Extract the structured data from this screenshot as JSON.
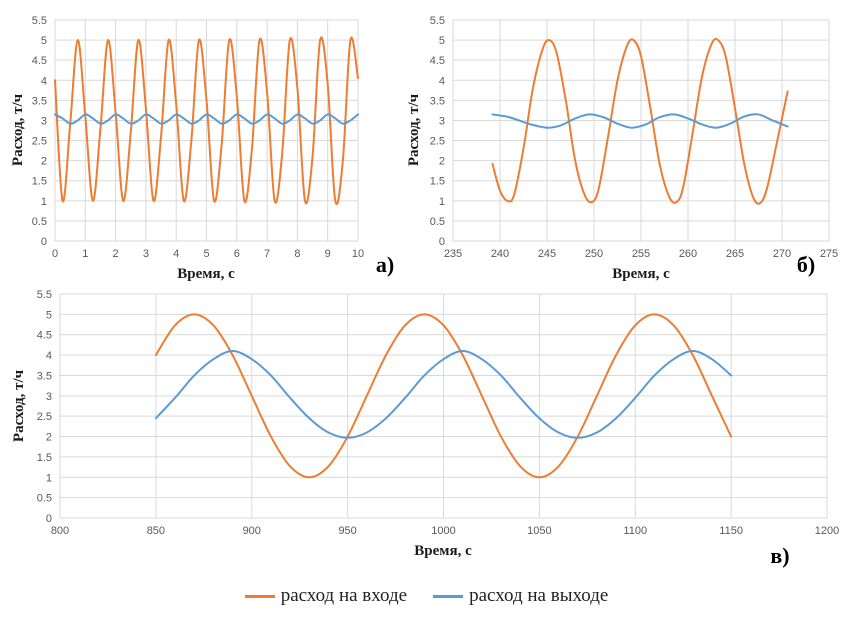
{
  "legend": {
    "items": [
      {
        "label": "расход на входе",
        "color": "#ED7D31"
      },
      {
        "label": "расход на выходе",
        "color": "#5B9BD5"
      }
    ]
  },
  "chart_data": [
    {
      "type": "line",
      "panel_label": "а)",
      "xlabel": "Время, с",
      "ylabel": "Расход, т/ч",
      "xlim": [
        0,
        10
      ],
      "ylim": [
        0,
        5.5
      ],
      "x_ticks": [
        "0",
        "1",
        "2",
        "3",
        "4",
        "5",
        "6",
        "7",
        "8",
        "9",
        "10"
      ],
      "y_ticks": [
        "0",
        "0.5",
        "1",
        "1.5",
        "2",
        "2.5",
        "3",
        "3.5",
        "4",
        "4.5",
        "5",
        "5.5"
      ],
      "series": [
        {
          "name": "расход на входе",
          "color": "#ED7D31",
          "x": [
            0,
            0.25,
            0.5,
            0.75,
            1.0,
            1.25,
            1.5,
            1.75,
            2.0,
            2.25,
            2.5,
            2.75,
            3.0,
            3.25,
            3.5,
            3.75,
            4.0,
            4.25,
            4.5,
            4.75,
            5.0,
            5.25,
            5.5,
            5.75,
            6.0,
            6.25,
            6.5,
            6.75,
            7.0,
            7.25,
            7.5,
            7.75,
            8.0,
            8.25,
            8.5,
            8.75,
            9.0,
            9.25,
            9.5,
            9.75,
            10.0
          ],
          "y": [
            4.0,
            1.0,
            2.9,
            5.0,
            3.1,
            1.0,
            2.8,
            5.0,
            3.2,
            1.0,
            2.7,
            5.0,
            3.3,
            1.0,
            2.6,
            5.0,
            3.4,
            1.0,
            2.5,
            5.0,
            3.5,
            1.0,
            2.4,
            5.0,
            3.6,
            1.0,
            2.3,
            5.0,
            3.7,
            1.0,
            2.2,
            5.0,
            3.8,
            1.0,
            2.1,
            5.0,
            3.9,
            1.0,
            2.0,
            5.0,
            4.05
          ]
        },
        {
          "name": "расход на выходе",
          "color": "#5B9BD5",
          "x": [
            0,
            0.25,
            0.5,
            0.75,
            1.0,
            1.25,
            1.5,
            1.75,
            2.0,
            2.25,
            2.5,
            2.75,
            3.0,
            3.25,
            3.5,
            3.75,
            4.0,
            4.25,
            4.5,
            4.75,
            5.0,
            5.25,
            5.5,
            5.75,
            6.0,
            6.25,
            6.5,
            6.75,
            7.0,
            7.25,
            7.5,
            7.75,
            8.0,
            8.25,
            8.5,
            8.75,
            9.0,
            9.25,
            9.5,
            9.75,
            10.0
          ],
          "y": [
            3.15,
            3.05,
            2.92,
            3.0,
            3.15,
            3.05,
            2.92,
            3.0,
            3.15,
            3.05,
            2.92,
            3.0,
            3.15,
            3.05,
            2.92,
            3.0,
            3.15,
            3.05,
            2.92,
            3.0,
            3.15,
            3.05,
            2.92,
            3.0,
            3.15,
            3.05,
            2.92,
            3.0,
            3.15,
            3.05,
            2.92,
            3.0,
            3.15,
            3.05,
            2.92,
            3.0,
            3.15,
            3.05,
            2.92,
            3.0,
            3.15
          ]
        }
      ]
    },
    {
      "type": "line",
      "panel_label": "б)",
      "xlabel": "Время, с",
      "ylabel": "Расход, т/ч",
      "xlim": [
        235,
        275
      ],
      "ylim": [
        0,
        5.5
      ],
      "x_ticks": [
        "235",
        "240",
        "245",
        "250",
        "255",
        "260",
        "265",
        "270",
        "275"
      ],
      "y_ticks": [
        "0",
        "0.5",
        "1",
        "1.5",
        "2",
        "2.5",
        "3",
        "3.5",
        "4",
        "4.5",
        "5",
        "5.5"
      ],
      "series": [
        {
          "name": "расход на входе",
          "color": "#ED7D31",
          "x": [
            239.2,
            240,
            240.8,
            241.5,
            242.5,
            243.5,
            244.5,
            245.2,
            246,
            247,
            248,
            249,
            249.8,
            250.5,
            251.5,
            252.5,
            253.5,
            254.2,
            255,
            256,
            257,
            258,
            258.8,
            259.5,
            260.5,
            261.5,
            262.5,
            263.2,
            264,
            265,
            266,
            267,
            267.8,
            268.5,
            269.5,
            270.6
          ],
          "y": [
            1.92,
            1.25,
            1.0,
            1.15,
            2.3,
            3.8,
            4.75,
            5.0,
            4.7,
            3.5,
            2.0,
            1.15,
            0.97,
            1.3,
            2.6,
            4.0,
            4.85,
            5.0,
            4.6,
            3.3,
            1.9,
            1.1,
            0.97,
            1.35,
            2.7,
            4.1,
            4.9,
            5.0,
            4.6,
            3.3,
            1.9,
            1.05,
            0.97,
            1.4,
            2.5,
            3.72
          ]
        },
        {
          "name": "расход на выходе",
          "color": "#5B9BD5",
          "x": [
            239.2,
            241,
            243,
            245,
            246.5,
            248,
            249.5,
            251,
            252.5,
            254,
            255.5,
            257,
            258.5,
            260,
            261.5,
            263,
            264.5,
            266,
            267.5,
            269,
            270.6
          ],
          "y": [
            3.15,
            3.08,
            2.92,
            2.82,
            2.88,
            3.05,
            3.15,
            3.08,
            2.92,
            2.82,
            2.9,
            3.08,
            3.15,
            3.05,
            2.9,
            2.82,
            2.92,
            3.1,
            3.15,
            3.0,
            2.85
          ]
        }
      ]
    },
    {
      "type": "line",
      "panel_label": "в)",
      "xlabel": "Время, с",
      "ylabel": "Расход, т/ч",
      "xlim": [
        800,
        1200
      ],
      "ylim": [
        0,
        5.5
      ],
      "x_ticks": [
        "800",
        "850",
        "900",
        "950",
        "1000",
        "1050",
        "1100",
        "1150",
        "1200"
      ],
      "y_ticks": [
        "0",
        "0.5",
        "1",
        "1.5",
        "2",
        "2.5",
        "3",
        "3.5",
        "4",
        "4.5",
        "5",
        "5.5"
      ],
      "series": [
        {
          "name": "расход на входе",
          "color": "#ED7D31",
          "x": [
            850,
            860,
            870,
            880,
            890,
            900,
            910,
            920,
            930,
            940,
            950,
            960,
            970,
            980,
            990,
            1000,
            1010,
            1020,
            1030,
            1040,
            1050,
            1060,
            1070,
            1080,
            1090,
            1100,
            1110,
            1120,
            1130,
            1140,
            1150
          ],
          "y": [
            4.0,
            4.73,
            5.0,
            4.73,
            4.0,
            3.0,
            2.0,
            1.27,
            1.0,
            1.27,
            2.0,
            3.0,
            4.0,
            4.73,
            5.0,
            4.73,
            4.0,
            3.0,
            2.0,
            1.27,
            1.0,
            1.27,
            2.0,
            3.0,
            4.0,
            4.73,
            5.0,
            4.73,
            4.0,
            3.0,
            2.0
          ]
        },
        {
          "name": "расход на выходе",
          "color": "#5B9BD5",
          "x": [
            850,
            860,
            870,
            880,
            890,
            900,
            910,
            920,
            930,
            940,
            950,
            960,
            970,
            980,
            990,
            1000,
            1010,
            1020,
            1030,
            1040,
            1050,
            1060,
            1070,
            1080,
            1090,
            1100,
            1110,
            1120,
            1130,
            1140,
            1150
          ],
          "y": [
            2.45,
            2.95,
            3.5,
            3.9,
            4.1,
            3.9,
            3.5,
            2.95,
            2.45,
            2.1,
            1.97,
            2.1,
            2.45,
            2.95,
            3.5,
            3.9,
            4.1,
            3.9,
            3.5,
            2.95,
            2.45,
            2.1,
            1.97,
            2.1,
            2.45,
            2.95,
            3.5,
            3.9,
            4.1,
            3.9,
            3.5
          ]
        }
      ]
    }
  ]
}
